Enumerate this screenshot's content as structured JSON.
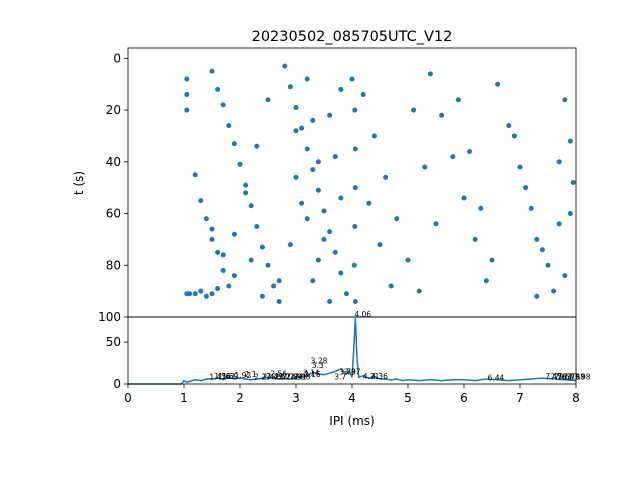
{
  "chart_data": [
    {
      "type": "scatter",
      "title": "20230502_085705UTC_V12",
      "xlabel": "",
      "ylabel": "t (s)",
      "xlim": [
        0,
        8
      ],
      "ylim": [
        100,
        -4
      ],
      "y_inverted": true,
      "yticks": [
        "0",
        "20",
        "40",
        "60",
        "80",
        "100"
      ],
      "x_ticklabels_shown": false,
      "series": [
        {
          "color": "#1f77b4",
          "note": "IPI vs time raster; points concentrated near x=2.6-4.1 ms",
          "points": [
            [
              1.05,
              8
            ],
            [
              1.05,
              14
            ],
            [
              1.05,
              20
            ],
            [
              1.05,
              91
            ],
            [
              1.1,
              91
            ],
            [
              1.2,
              91
            ],
            [
              1.3,
              90
            ],
            [
              1.4,
              92
            ],
            [
              1.5,
              91
            ],
            [
              1.6,
              89
            ],
            [
              1.2,
              45
            ],
            [
              1.3,
              55
            ],
            [
              1.4,
              62
            ],
            [
              1.5,
              70
            ],
            [
              1.6,
              75
            ],
            [
              1.7,
              82
            ],
            [
              1.8,
              88
            ],
            [
              1.5,
              66
            ],
            [
              1.7,
              76
            ],
            [
              1.9,
              84
            ],
            [
              1.5,
              5
            ],
            [
              1.6,
              12
            ],
            [
              1.7,
              18
            ],
            [
              1.8,
              26
            ],
            [
              1.9,
              33
            ],
            [
              2.0,
              41
            ],
            [
              2.1,
              49
            ],
            [
              2.2,
              57
            ],
            [
              2.3,
              65
            ],
            [
              2.4,
              73
            ],
            [
              2.5,
              80
            ],
            [
              2.6,
              88
            ],
            [
              2.7,
              94
            ],
            [
              2.8,
              3
            ],
            [
              2.9,
              11
            ],
            [
              3.0,
              19
            ],
            [
              3.1,
              27
            ],
            [
              3.2,
              35
            ],
            [
              3.3,
              43
            ],
            [
              3.4,
              51
            ],
            [
              3.5,
              59
            ],
            [
              3.6,
              67
            ],
            [
              3.7,
              75
            ],
            [
              3.8,
              83
            ],
            [
              3.9,
              91
            ],
            [
              4.0,
              8
            ],
            [
              4.05,
              20
            ],
            [
              4.06,
              35
            ],
            [
              4.06,
              50
            ],
            [
              4.05,
              65
            ],
            [
              4.04,
              80
            ],
            [
              4.06,
              94
            ],
            [
              4.2,
              14
            ],
            [
              4.4,
              30
            ],
            [
              4.6,
              46
            ],
            [
              4.8,
              62
            ],
            [
              5.0,
              78
            ],
            [
              5.2,
              90
            ],
            [
              5.4,
              6
            ],
            [
              5.6,
              22
            ],
            [
              5.8,
              38
            ],
            [
              6.0,
              54
            ],
            [
              6.2,
              70
            ],
            [
              6.4,
              86
            ],
            [
              6.6,
              10
            ],
            [
              6.8,
              26
            ],
            [
              7.0,
              42
            ],
            [
              7.2,
              58
            ],
            [
              7.4,
              74
            ],
            [
              7.6,
              90
            ],
            [
              7.8,
              16
            ],
            [
              7.9,
              32
            ],
            [
              7.95,
              48
            ],
            [
              7.7,
              64
            ],
            [
              7.5,
              80
            ],
            [
              7.3,
              92
            ],
            [
              3.2,
              8
            ],
            [
              3.3,
              24
            ],
            [
              3.4,
              40
            ],
            [
              3.1,
              56
            ],
            [
              2.9,
              72
            ],
            [
              2.7,
              86
            ],
            [
              3.6,
              22
            ],
            [
              3.7,
              38
            ],
            [
              3.8,
              54
            ],
            [
              3.5,
              70
            ],
            [
              3.3,
              86
            ],
            [
              2.5,
              16
            ],
            [
              2.3,
              34
            ],
            [
              2.1,
              52
            ],
            [
              1.9,
              68
            ],
            [
              2.2,
              78
            ],
            [
              2.4,
              92
            ],
            [
              3.0,
              28
            ],
            [
              3.0,
              46
            ],
            [
              3.2,
              62
            ],
            [
              3.4,
              78
            ],
            [
              3.6,
              94
            ],
            [
              3.8,
              12
            ],
            [
              4.3,
              56
            ],
            [
              4.5,
              72
            ],
            [
              4.7,
              88
            ],
            [
              5.1,
              20
            ],
            [
              5.3,
              42
            ],
            [
              5.5,
              64
            ],
            [
              5.9,
              16
            ],
            [
              6.1,
              36
            ],
            [
              6.3,
              58
            ],
            [
              6.5,
              78
            ],
            [
              6.9,
              30
            ],
            [
              7.1,
              50
            ],
            [
              7.3,
              70
            ],
            [
              7.7,
              40
            ],
            [
              7.9,
              60
            ],
            [
              7.8,
              84
            ]
          ]
        }
      ]
    },
    {
      "type": "line",
      "title": "",
      "xlabel": "IPI (ms)",
      "ylabel": "",
      "xlim": [
        0,
        8
      ],
      "ylim": [
        0,
        80
      ],
      "xticks": [
        "0",
        "1",
        "2",
        "3",
        "4",
        "5",
        "6",
        "7",
        "8"
      ],
      "yticks": [
        "0",
        "50"
      ],
      "series": [
        {
          "color": "#1f77b4",
          "x": [
            0,
            0.5,
            0.95,
            1.0,
            1.05,
            1.1,
            1.2,
            1.3,
            1.4,
            1.5,
            1.6,
            1.7,
            1.8,
            1.9,
            2.0,
            2.1,
            2.2,
            2.3,
            2.4,
            2.5,
            2.6,
            2.7,
            2.8,
            2.9,
            3.0,
            3.1,
            3.2,
            3.3,
            3.4,
            3.5,
            3.6,
            3.7,
            3.8,
            3.9,
            3.95,
            4.0,
            4.03,
            4.06,
            4.09,
            4.12,
            4.2,
            4.3,
            4.4,
            4.5,
            4.6,
            4.7,
            4.8,
            4.9,
            5.0,
            5.2,
            5.4,
            5.6,
            5.8,
            6.0,
            6.2,
            6.4,
            6.6,
            6.8,
            7.0,
            7.2,
            7.4,
            7.6,
            7.8,
            8.0
          ],
          "values": [
            0,
            0,
            0,
            4,
            2,
            3,
            5,
            4,
            6,
            6,
            7,
            5,
            8,
            6,
            7,
            6,
            5,
            6,
            7,
            8,
            7,
            6,
            7,
            6,
            8,
            9,
            10,
            14,
            12,
            11,
            13,
            15,
            18,
            12,
            16,
            8,
            40,
            79,
            30,
            8,
            10,
            7,
            9,
            6,
            6,
            5,
            6,
            4,
            5,
            4,
            5,
            4,
            5,
            5,
            4,
            6,
            5,
            4,
            5,
            6,
            7,
            6,
            5,
            4
          ]
        }
      ],
      "annotations": [
        {
          "x": 1.47,
          "y": 4,
          "text": "1.47"
        },
        {
          "x": 1.56,
          "y": 5,
          "text": "1.56"
        },
        {
          "x": 1.63,
          "y": 5,
          "text": "1.63"
        },
        {
          "x": 1.69,
          "y": 5,
          "text": "1.69"
        },
        {
          "x": 1.92,
          "y": 6,
          "text": "1.92"
        },
        {
          "x": 2.1,
          "y": 7,
          "text": "2.1"
        },
        {
          "x": 2.27,
          "y": 4,
          "text": "2.27"
        },
        {
          "x": 2.42,
          "y": 4,
          "text": "2.42"
        },
        {
          "x": 2.49,
          "y": 5,
          "text": "2.49"
        },
        {
          "x": 2.56,
          "y": 8,
          "text": "2.56"
        },
        {
          "x": 2.62,
          "y": 4,
          "text": "2.62"
        },
        {
          "x": 2.7,
          "y": 4,
          "text": "2.7"
        },
        {
          "x": 2.77,
          "y": 4,
          "text": "2.77"
        },
        {
          "x": 2.84,
          "y": 4,
          "text": "2.84"
        },
        {
          "x": 2.91,
          "y": 4,
          "text": "2.91"
        },
        {
          "x": 2.98,
          "y": 4,
          "text": "2.98"
        },
        {
          "x": 3.14,
          "y": 9,
          "text": "3.14"
        },
        {
          "x": 3.16,
          "y": 7,
          "text": "3.16"
        },
        {
          "x": 3.28,
          "y": 23,
          "text": "3.28"
        },
        {
          "x": 3.3,
          "y": 18,
          "text": "3.3"
        },
        {
          "x": 3.7,
          "y": 4,
          "text": "3.7"
        },
        {
          "x": 3.79,
          "y": 10,
          "text": "3.79"
        },
        {
          "x": 3.87,
          "y": 10,
          "text": "3.87"
        },
        {
          "x": 4.06,
          "y": 79,
          "text": "4.06"
        },
        {
          "x": 4.21,
          "y": 5,
          "text": "4.21"
        },
        {
          "x": 4.36,
          "y": 5,
          "text": "4.36"
        },
        {
          "x": 6.44,
          "y": 3,
          "text": "6.44"
        },
        {
          "x": 7.47,
          "y": 5,
          "text": "7.47"
        },
        {
          "x": 7.56,
          "y": 4,
          "text": "7.56"
        },
        {
          "x": 7.63,
          "y": 4,
          "text": "7.63"
        },
        {
          "x": 7.69,
          "y": 4,
          "text": "7.69"
        },
        {
          "x": 7.79,
          "y": 4,
          "text": "7.79"
        },
        {
          "x": 7.88,
          "y": 4,
          "text": "7.88"
        },
        {
          "x": 7.98,
          "y": 4,
          "text": "7.98"
        }
      ]
    }
  ]
}
